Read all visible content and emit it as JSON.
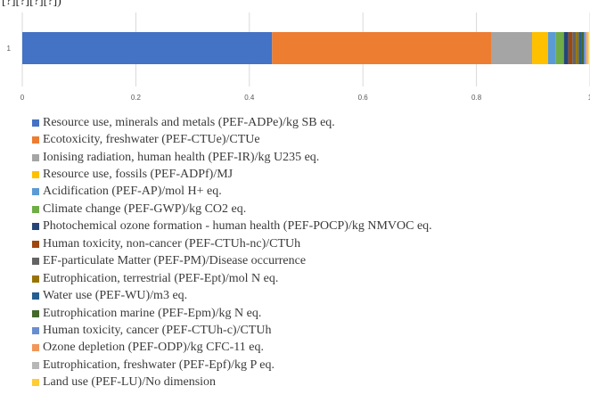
{
  "header": {
    "text": "[?][?][?][?])"
  },
  "chart_data": {
    "type": "bar",
    "orientation": "horizontal",
    "stacked": true,
    "categories": [
      "1"
    ],
    "xlim": [
      0,
      1
    ],
    "x_ticks": [
      "0",
      "0.2",
      "0.4",
      "0.6",
      "0.8",
      "1"
    ],
    "grid": "vertical",
    "legend_position": "bottom",
    "series": [
      {
        "name": "Resource use, minerals and metals (PEF-ADPe)/kg SB eq.",
        "values": [
          0.44
        ],
        "color": "#4472C4"
      },
      {
        "name": "Ecotoxicity, freshwater (PEF-CTUe)/CTUe",
        "values": [
          0.387
        ],
        "color": "#ED7D31"
      },
      {
        "name": "Ionising radiation, human health (PEF-IR)/kg U235 eq.",
        "values": [
          0.071
        ],
        "color": "#A5A5A5"
      },
      {
        "name": "Resource use, fossils (PEF-ADPf)/MJ",
        "values": [
          0.028
        ],
        "color": "#FFC000"
      },
      {
        "name": "Acidification (PEF-AP)/mol H+ eq.",
        "values": [
          0.014
        ],
        "color": "#5B9BD5"
      },
      {
        "name": "Climate change (PEF-GWP)/kg CO2 eq.",
        "values": [
          0.014
        ],
        "color": "#70AD47"
      },
      {
        "name": "Photochemical ozone formation - human health (PEF-POCP)/kg NMVOC eq.",
        "values": [
          0.008
        ],
        "color": "#264478"
      },
      {
        "name": "Human toxicity, non-cancer (PEF-CTUh-nc)/CTUh",
        "values": [
          0.007
        ],
        "color": "#9E480E"
      },
      {
        "name": "EF-particulate Matter (PEF-PM)/Disease occurrence",
        "values": [
          0.006
        ],
        "color": "#636363"
      },
      {
        "name": "Eutrophication, terrestrial (PEF-Ept)/mol N eq.",
        "values": [
          0.005
        ],
        "color": "#997300"
      },
      {
        "name": "Water use (PEF-WU)/m3 eq.",
        "values": [
          0.005
        ],
        "color": "#255E91"
      },
      {
        "name": "Eutrophication marine (PEF-Epm)/kg N eq.",
        "values": [
          0.004
        ],
        "color": "#43682B"
      },
      {
        "name": "Human toxicity, cancer (PEF-CTUh-c)/CTUh",
        "values": [
          0.003
        ],
        "color": "#698ED0"
      },
      {
        "name": "Ozone depletion (PEF-ODP)/kg CFC-11 eq.",
        "values": [
          0.002
        ],
        "color": "#F1975A"
      },
      {
        "name": "Eutrophication, freshwater (PEF-Epf)/kg P eq.",
        "values": [
          0.002
        ],
        "color": "#B7B7B7"
      },
      {
        "name": "Land use (PEF-LU)/No dimension",
        "values": [
          0.002
        ],
        "color": "#FFCD33"
      }
    ]
  }
}
